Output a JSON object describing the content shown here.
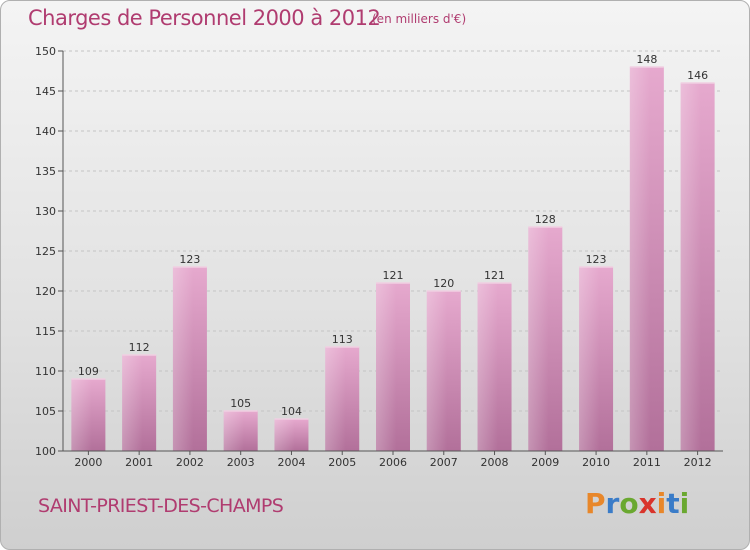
{
  "header": {
    "title": "Charges de Personnel 2000 à 2012",
    "subtitle": "(en milliers d'€)"
  },
  "footer": {
    "commune": "SAINT-PRIEST-DES-CHAMPS",
    "brand": "Proxiti"
  },
  "colors": {
    "accent": "#b03c70",
    "bar_top": "#e6a9ce",
    "bar_bottom": "#b2709a",
    "brand_letters": [
      "#e8872a",
      "#3a7cc8",
      "#6aa830",
      "#d9342b",
      "#e8872a",
      "#3a7cc8",
      "#6aa830"
    ]
  },
  "chart_data": {
    "type": "bar",
    "title": "Charges de Personnel 2000 à 2012",
    "subtitle": "(en milliers d'€)",
    "categories": [
      "2000",
      "2001",
      "2002",
      "2003",
      "2004",
      "2005",
      "2006",
      "2007",
      "2008",
      "2009",
      "2010",
      "2011",
      "2012"
    ],
    "values": [
      109,
      112,
      123,
      105,
      104,
      113,
      121,
      120,
      121,
      128,
      123,
      148,
      146
    ],
    "ylim": [
      100,
      150
    ],
    "yticks": [
      100,
      105,
      110,
      115,
      120,
      125,
      130,
      135,
      140,
      145,
      150
    ],
    "grid": true,
    "legend": "none"
  }
}
